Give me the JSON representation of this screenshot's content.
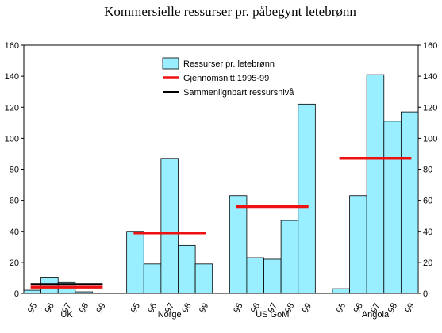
{
  "chart_data": {
    "type": "bar",
    "title": "Kommersielle ressurser pr.  påbegynt letebrønn",
    "xlabel": "",
    "ylabel": "",
    "ylim": [
      0,
      160
    ],
    "yticks": [
      0,
      20,
      40,
      60,
      80,
      100,
      120,
      140,
      160
    ],
    "grid": false,
    "legend_position": "top-center",
    "colors": {
      "bars": "#99EEFF",
      "bar_edge": "#000000",
      "average": "#EE1111",
      "comparable": "#000000"
    },
    "legend": [
      {
        "key": "bars",
        "label": "Ressurser pr. letebrønn"
      },
      {
        "key": "average",
        "label": "Gjennomsnitt 1995-99"
      },
      {
        "key": "comparable",
        "label": "Sammenlignbart ressursnivå"
      }
    ],
    "groups": [
      {
        "name": "UK",
        "years": [
          "95",
          "96",
          "97",
          "98",
          "99"
        ],
        "values": [
          2,
          10,
          7,
          1,
          0
        ],
        "average": 4,
        "comparable": 6
      },
      {
        "name": "Norge",
        "years": [
          "95",
          "96",
          "97",
          "98",
          "99"
        ],
        "values": [
          40,
          19,
          87,
          31,
          19
        ],
        "average": 39,
        "comparable": null
      },
      {
        "name": "US GoM",
        "years": [
          "95",
          "96",
          "97",
          "98",
          "99"
        ],
        "values": [
          63,
          23,
          22,
          47,
          122
        ],
        "average": 56,
        "comparable": null
      },
      {
        "name": "Angola",
        "years": [
          "95",
          "96",
          "97",
          "98",
          "99"
        ],
        "values": [
          3,
          63,
          141,
          111,
          117
        ],
        "average": 87,
        "comparable": null
      }
    ]
  }
}
